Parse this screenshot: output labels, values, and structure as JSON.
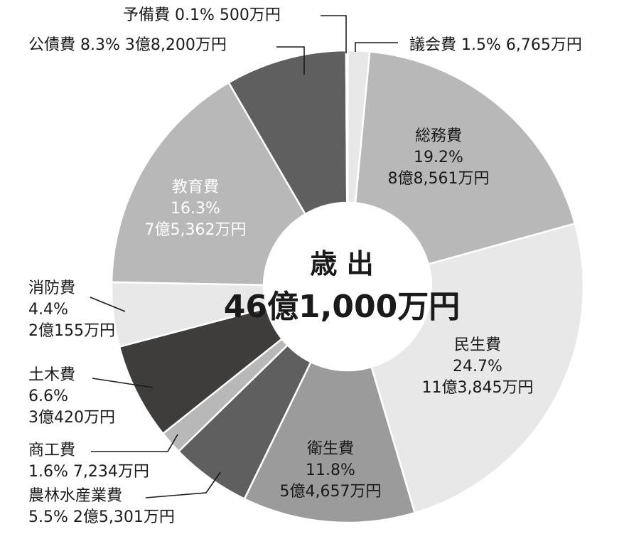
{
  "chart_data": {
    "type": "pie",
    "donut": true,
    "center_title": "歳 出",
    "center_total": "46億1,000万円",
    "slices": [
      {
        "name": "議会費",
        "percent": 1.5,
        "amount": "6,765万円",
        "pct_label": "1.5%",
        "label_style": "inline",
        "color": "#e8e8e8"
      },
      {
        "name": "総務費",
        "percent": 19.2,
        "amount": "8億8,561万円",
        "pct_label": "19.2%",
        "label_style": "inside",
        "color": "#b8b8b8"
      },
      {
        "name": "民生費",
        "percent": 24.7,
        "amount": "11億3,845万円",
        "pct_label": "24.7%",
        "label_style": "inside",
        "color": "#e8e8e8"
      },
      {
        "name": "衛生費",
        "percent": 11.8,
        "amount": "5億4,657万円",
        "pct_label": "11.8%",
        "label_style": "inside",
        "color": "#9b9b9b"
      },
      {
        "name": "農林水産業費",
        "percent": 5.5,
        "amount": "2億5,301万円",
        "pct_label": "5.5%",
        "label_style": "two-line",
        "color": "#5f5f5f"
      },
      {
        "name": "商工費",
        "percent": 1.6,
        "amount": "7,234万円",
        "pct_label": "1.6%",
        "label_style": "two-line",
        "color": "#b8b8b8"
      },
      {
        "name": "土木費",
        "percent": 6.6,
        "amount": "3億420万円",
        "pct_label": "6.6%",
        "label_style": "three-line",
        "color": "#3f3c3c"
      },
      {
        "name": "消防費",
        "percent": 4.4,
        "amount": "2億155万円",
        "pct_label": "4.4%",
        "label_style": "three-line",
        "color": "#e8e8e8"
      },
      {
        "name": "教育費",
        "percent": 16.3,
        "amount": "7億5,362万円",
        "pct_label": "16.3%",
        "label_style": "inside",
        "color": "#b8b8b8"
      },
      {
        "name": "公債費",
        "percent": 8.3,
        "amount": "3億8,200万円",
        "pct_label": "8.3%",
        "label_style": "inline",
        "color": "#5f5f5f"
      },
      {
        "name": "予備費",
        "percent": 0.1,
        "amount": "500万円",
        "pct_label": "0.1%",
        "label_style": "inline",
        "color": "#e8e8e8"
      }
    ]
  }
}
